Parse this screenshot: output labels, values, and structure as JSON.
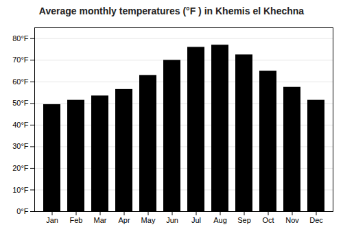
{
  "chart_data": {
    "type": "bar",
    "title": "Average monthly temperatures (°F ) in Khemis el Khechna",
    "categories": [
      "Jan",
      "Feb",
      "Mar",
      "Apr",
      "May",
      "Jun",
      "Jul",
      "Aug",
      "Sep",
      "Oct",
      "Nov",
      "Dec"
    ],
    "values": [
      49.5,
      51.5,
      53.5,
      56.5,
      63.0,
      70.0,
      76.0,
      77.0,
      72.5,
      65.0,
      57.5,
      51.5
    ],
    "ylim": [
      0,
      85
    ],
    "yticks": [
      {
        "value": 0,
        "label": "0°F"
      },
      {
        "value": 10,
        "label": "10°F"
      },
      {
        "value": 20,
        "label": "20°F"
      },
      {
        "value": 30,
        "label": "30°F"
      },
      {
        "value": 40,
        "label": "40°F"
      },
      {
        "value": 50,
        "label": "50°F"
      },
      {
        "value": 60,
        "label": "60°F"
      },
      {
        "value": 70,
        "label": "70°F"
      },
      {
        "value": 80,
        "label": "80°F"
      }
    ],
    "grid": true
  }
}
